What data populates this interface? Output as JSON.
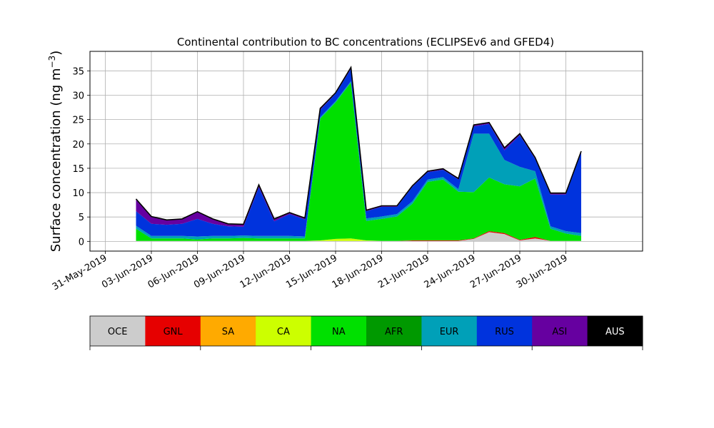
{
  "chart_data": {
    "type": "area",
    "title": "Continental contribution to BC concentrations (ECLIPSEv6 and GFED4)",
    "ylabel": "Surface concentration (ng m",
    "ylabel_exp": "−3",
    "ylabel_close": ")",
    "xlabel": "",
    "ylim": [
      -2,
      39
    ],
    "yticks": [
      0,
      5,
      10,
      15,
      20,
      25,
      30,
      35
    ],
    "xlim": [
      "2019-05-30",
      "2019-07-05"
    ],
    "xticks": [
      "31-May-2019",
      "03-Jun-2019",
      "06-Jun-2019",
      "09-Jun-2019",
      "12-Jun-2019",
      "15-Jun-2019",
      "18-Jun-2019",
      "21-Jun-2019",
      "24-Jun-2019",
      "27-Jun-2019",
      "30-Jun-2019"
    ],
    "grid": true,
    "x": [
      "2019-06-02",
      "2019-06-03",
      "2019-06-04",
      "2019-06-05",
      "2019-06-06",
      "2019-06-07",
      "2019-06-08",
      "2019-06-09",
      "2019-06-10",
      "2019-06-11",
      "2019-06-12",
      "2019-06-13",
      "2019-06-14",
      "2019-06-15",
      "2019-06-16",
      "2019-06-17",
      "2019-06-18",
      "2019-06-19",
      "2019-06-20",
      "2019-06-21",
      "2019-06-22",
      "2019-06-23",
      "2019-06-24",
      "2019-06-25",
      "2019-06-26",
      "2019-06-27",
      "2019-06-28",
      "2019-06-29",
      "2019-06-30",
      "2019-07-01"
    ],
    "series": [
      {
        "name": "OCE",
        "color": "#cccccc",
        "values": [
          0.1,
          0.1,
          0.1,
          0.1,
          0.1,
          0.1,
          0.1,
          0.1,
          0.1,
          0.1,
          0.1,
          0.1,
          0.1,
          0.1,
          0.1,
          0.1,
          0.1,
          0.1,
          0.1,
          0.1,
          0.1,
          0.1,
          0.5,
          1.9,
          1.5,
          0.2,
          0.6,
          0.1,
          0.1,
          0.1
        ]
      },
      {
        "name": "GNL",
        "color": "#e60000",
        "values": [
          0,
          0,
          0,
          0,
          0,
          0,
          0,
          0,
          0,
          0,
          0,
          0,
          0,
          0,
          0,
          0,
          0,
          0,
          0.1,
          0.1,
          0.1,
          0.1,
          0.1,
          0.2,
          0.2,
          0.1,
          0.3,
          0,
          0,
          0
        ]
      },
      {
        "name": "SA",
        "color": "#ffaa00",
        "values": [
          0,
          0,
          0,
          0,
          0,
          0,
          0,
          0,
          0,
          0,
          0,
          0,
          0,
          0,
          0,
          0,
          0,
          0,
          0,
          0,
          0,
          0,
          0,
          0,
          0,
          0,
          0,
          0,
          0,
          0
        ]
      },
      {
        "name": "CA",
        "color": "#ccff00",
        "values": [
          0,
          0,
          0,
          0,
          0,
          0,
          0,
          0,
          0,
          0,
          0,
          0,
          0.1,
          0.4,
          0.5,
          0.1,
          0,
          0,
          0,
          0,
          0,
          0,
          0,
          0,
          0,
          0,
          0,
          0,
          0,
          0
        ]
      },
      {
        "name": "NA",
        "color": "#00e000",
        "values": [
          2.5,
          0.5,
          0.5,
          0.5,
          0.3,
          0.5,
          0.5,
          0.6,
          0.5,
          0.5,
          0.5,
          0.5,
          25.0,
          28.0,
          32.0,
          4.0,
          4.5,
          5.0,
          7.5,
          12.0,
          12.5,
          10.0,
          9.5,
          11.0,
          10.0,
          11.0,
          12.0,
          2.5,
          1.5,
          1.0
        ]
      },
      {
        "name": "AFR",
        "color": "#009900",
        "values": [
          0,
          0,
          0,
          0,
          0,
          0,
          0,
          0,
          0,
          0,
          0,
          0,
          0,
          0,
          0,
          0,
          0,
          0,
          0,
          0,
          0,
          0,
          0,
          0,
          0,
          0,
          0,
          0,
          0,
          0
        ]
      },
      {
        "name": "EUR",
        "color": "#00a0b8",
        "values": [
          0.6,
          0.5,
          0.5,
          0.5,
          0.6,
          0.5,
          0.5,
          0.5,
          0.5,
          0.5,
          0.5,
          0.4,
          0.3,
          0.3,
          0.3,
          0.5,
          0.5,
          0.5,
          0.5,
          0.5,
          0.5,
          0.5,
          12.0,
          9.0,
          5.0,
          4.0,
          1.5,
          0.5,
          0.5,
          0.6
        ]
      },
      {
        "name": "RUS",
        "color": "#0033dd",
        "values": [
          3.0,
          2.5,
          2.3,
          2.5,
          3.6,
          2.5,
          2.0,
          1.8,
          10.0,
          3.0,
          4.5,
          3.5,
          1.5,
          1.5,
          2.5,
          1.5,
          2.0,
          1.5,
          3.0,
          1.5,
          1.5,
          2.0,
          1.5,
          2.0,
          2.0,
          6.5,
          2.5,
          6.5,
          7.5,
          16.5
        ]
      },
      {
        "name": "ASI",
        "color": "#6600a0",
        "values": [
          2.5,
          1.5,
          1.0,
          1.0,
          1.5,
          1.0,
          0.5,
          0.5,
          0.5,
          0.5,
          0.3,
          0.3,
          0.3,
          0.2,
          0.3,
          0.2,
          0.2,
          0.2,
          0.2,
          0.2,
          0.2,
          0.2,
          0.3,
          0.3,
          0.5,
          0.3,
          0.3,
          0.3,
          0.3,
          0.3
        ]
      },
      {
        "name": "AUS",
        "color": "#000000",
        "values": [
          0,
          0,
          0,
          0,
          0,
          0,
          0,
          0,
          0,
          0,
          0,
          0,
          0,
          0,
          0,
          0,
          0,
          0,
          0,
          0,
          0,
          0,
          0,
          0,
          0,
          0,
          0,
          0,
          0,
          0
        ]
      }
    ]
  }
}
